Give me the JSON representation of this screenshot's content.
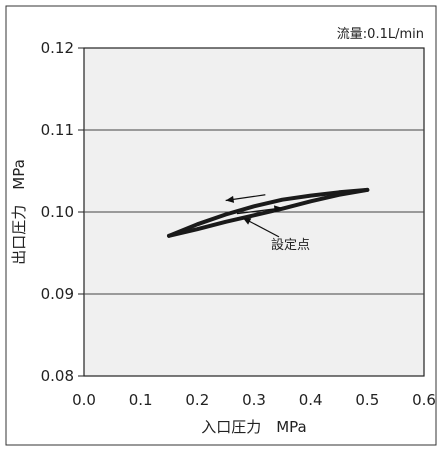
{
  "chart_data": {
    "type": "line",
    "flow_note": "流量:0.1L/min",
    "xlabel": "入口圧力　MPa",
    "ylabel": "出口圧力　MPa",
    "xlim": [
      0.0,
      0.6
    ],
    "ylim": [
      0.08,
      0.12
    ],
    "x_ticks": [
      "0.0",
      "0.1",
      "0.2",
      "0.3",
      "0.4",
      "0.5",
      "0.6"
    ],
    "y_ticks": [
      "0.08",
      "0.09",
      "0.10",
      "0.11",
      "0.12"
    ],
    "grid": "horizontal",
    "background_color": "#f0f0f0",
    "line_color": "#1a1a1a",
    "series": [
      {
        "x": [
          0.15,
          0.2,
          0.25,
          0.3,
          0.35,
          0.4,
          0.45,
          0.5
        ],
        "y": [
          0.0971,
          0.0985,
          0.0997,
          0.1007,
          0.1015,
          0.102,
          0.1024,
          0.1027
        ]
      },
      {
        "x": [
          0.15,
          0.2,
          0.25,
          0.3,
          0.35,
          0.4,
          0.45,
          0.5
        ],
        "y": [
          0.0971,
          0.0979,
          0.0988,
          0.0996,
          0.1004,
          0.1013,
          0.1021,
          0.1027
        ]
      }
    ],
    "annotations": [
      {
        "text": "設定点",
        "x": 0.33,
        "y": 0.0955,
        "arrow_to": [
          0.28,
          0.0993
        ]
      }
    ],
    "direction_arrows": [
      {
        "from": [
          0.32,
          0.1021
        ],
        "to": [
          0.25,
          0.1014
        ]
      },
      {
        "from": [
          0.27,
          0.0998
        ],
        "to": [
          0.35,
          0.1005
        ]
      }
    ]
  }
}
